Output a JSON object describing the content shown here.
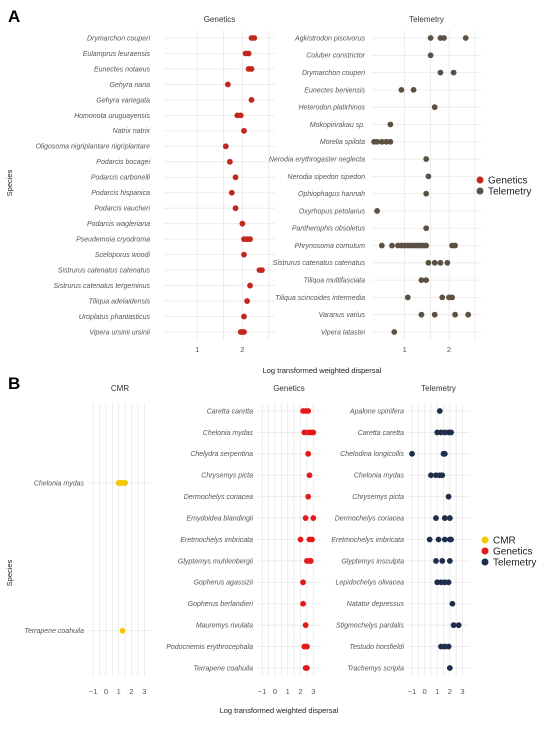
{
  "colors": {
    "CMR": "#f5c800",
    "Genetics": "#c0281e",
    "Telemetry": "#5c5143",
    "GeneticsB": "#e31a1c",
    "TelemetryB": "#1f2e4a"
  },
  "chart_data": [
    {
      "type": "scatter",
      "panel": "A",
      "scale": "log",
      "xlabel": "Log transformed weighted dispersal",
      "ylabel": "Species",
      "legend": {
        "position": "right",
        "entries": [
          "Genetics",
          "Telemetry"
        ]
      },
      "facets": [
        {
          "name": "Genetics",
          "color_key": "Genetics",
          "xlim": [
            0.6,
            3.3
          ],
          "xticks": [
            1,
            2
          ],
          "species": [
            {
              "name": "Drymarchon couperi",
              "values": [
                2.3,
                2.4
              ]
            },
            {
              "name": "Eulamprus leuraensis",
              "values": [
                2.1,
                2.2
              ]
            },
            {
              "name": "Eunectes notaeus",
              "values": [
                2.2,
                2.3
              ]
            },
            {
              "name": "Gehyra nana",
              "values": [
                1.6
              ]
            },
            {
              "name": "Gehyra variegata",
              "values": [
                2.3
              ]
            },
            {
              "name": "Homonota uruguayensis",
              "values": [
                1.85,
                1.95
              ]
            },
            {
              "name": "Natrix natrix",
              "values": [
                2.05
              ]
            },
            {
              "name": "Oligosoma nigriplantare nigriplantare",
              "values": [
                1.55
              ]
            },
            {
              "name": "Podarcis bocagei",
              "values": [
                1.65
              ]
            },
            {
              "name": "Podarcis carbonelli",
              "values": [
                1.8
              ]
            },
            {
              "name": "Podarcis hispanica",
              "values": [
                1.7
              ]
            },
            {
              "name": "Podarcis vaucheri",
              "values": [
                1.8
              ]
            },
            {
              "name": "Podarcis wagleriana",
              "values": [
                2.0
              ]
            },
            {
              "name": "Pseudemoia cryodroma",
              "values": [
                2.05,
                2.15,
                2.25
              ]
            },
            {
              "name": "Sceloporus woodi",
              "values": [
                2.05
              ]
            },
            {
              "name": "Sistrurus catenatus catenatus",
              "values": [
                2.6,
                2.7
              ]
            },
            {
              "name": "Sistrurus catenatus tergeminus",
              "values": [
                2.25
              ]
            },
            {
              "name": "Tiliqua adelaidensis",
              "values": [
                2.15
              ]
            },
            {
              "name": "Uroplatus phantasticus",
              "values": [
                2.05
              ]
            },
            {
              "name": "Vipera ursinii ursinii",
              "values": [
                1.95,
                2.0,
                2.05
              ]
            }
          ]
        },
        {
          "name": "Telemetry",
          "color_key": "Telemetry",
          "xlim": [
            0.6,
            3.3
          ],
          "xticks": [
            1,
            2
          ],
          "species": [
            {
              "name": "Agkistrodon piscivorus",
              "values": [
                1.5,
                1.75,
                1.85,
                2.6
              ]
            },
            {
              "name": "Coluber constrictor",
              "values": [
                1.5
              ]
            },
            {
              "name": "Drymarchon couperi",
              "values": [
                1.75,
                2.15
              ]
            },
            {
              "name": "Eunectes beniensis",
              "values": [
                0.95,
                1.15
              ]
            },
            {
              "name": "Heterodon platirhinos",
              "values": [
                1.6
              ]
            },
            {
              "name": "Mokopirirakau sp.",
              "values": [
                0.8
              ]
            },
            {
              "name": "Morelia spilota",
              "values": [
                0.62,
                0.65,
                0.7,
                0.75,
                0.8
              ]
            },
            {
              "name": "Nerodia erythrogaster neglecta",
              "values": [
                1.4
              ]
            },
            {
              "name": "Nerodia sipedon sipedon",
              "values": [
                1.45
              ]
            },
            {
              "name": "Ophiophagus hannah",
              "values": [
                1.4
              ]
            },
            {
              "name": "Oxyrhopus petolarius",
              "values": [
                0.65
              ]
            },
            {
              "name": "Pantherophis obsoletus",
              "values": [
                1.4
              ]
            },
            {
              "name": "Phrynosoma cornutum",
              "values": [
                0.7,
                0.82,
                0.9,
                0.95,
                1.0,
                1.05,
                1.1,
                1.15,
                1.2,
                1.25,
                1.3,
                1.35,
                1.4,
                2.1,
                2.2
              ]
            },
            {
              "name": "Sistrurus catenatus catenatus",
              "values": [
                1.45,
                1.6,
                1.75,
                1.95
              ]
            },
            {
              "name": "Tiliqua multifasciata",
              "values": [
                1.3,
                1.4
              ]
            },
            {
              "name": "Tiliqua scincoides intermedia",
              "values": [
                1.05,
                1.8,
                2.0,
                2.1
              ]
            },
            {
              "name": "Varanus varius",
              "values": [
                1.3,
                1.6,
                2.2,
                2.7
              ]
            },
            {
              "name": "Vipera latastei",
              "values": [
                0.85
              ]
            }
          ]
        }
      ]
    },
    {
      "type": "scatter",
      "panel": "B",
      "scale": "linear",
      "xlabel": "Log transformed weighted dispersal",
      "ylabel": "Species",
      "legend": {
        "position": "right",
        "entries": [
          "CMR",
          "Genetics",
          "Telemetry"
        ]
      },
      "facets": [
        {
          "name": "CMR",
          "color_key": "CMR",
          "xlim": [
            -1.4,
            3.6
          ],
          "xticks": [
            -1,
            0,
            1,
            2,
            3
          ],
          "species": [
            {
              "name": "Chelonia mydas",
              "values": [
                1.0,
                1.1,
                1.2,
                1.3,
                1.5
              ]
            },
            {
              "name": "Terrapene coahuila",
              "values": [
                1.3
              ]
            }
          ]
        },
        {
          "name": "Genetics",
          "color_key": "GeneticsB",
          "xlim": [
            -1.4,
            3.6
          ],
          "xticks": [
            -1,
            0,
            1,
            2,
            3
          ],
          "species": [
            {
              "name": "Caretta caretta",
              "values": [
                2.2,
                2.4,
                2.6
              ]
            },
            {
              "name": "Chelonia mydas",
              "values": [
                2.3,
                2.6,
                2.8,
                3.0
              ]
            },
            {
              "name": "Chelydra serpentina",
              "values": [
                2.6
              ]
            },
            {
              "name": "Chrysemys picta",
              "values": [
                2.7
              ]
            },
            {
              "name": "Dermochelys coriacea",
              "values": [
                2.6
              ]
            },
            {
              "name": "Emydoidea blandingii",
              "values": [
                2.4,
                3.0
              ]
            },
            {
              "name": "Eretmochelys imbricata",
              "values": [
                2.0,
                2.7,
                2.9
              ]
            },
            {
              "name": "Glyptemys muhlenbergii",
              "values": [
                2.5,
                2.7,
                2.8
              ]
            },
            {
              "name": "Gopherus agassizii",
              "values": [
                2.2
              ]
            },
            {
              "name": "Gopherus berlandieri",
              "values": [
                2.2
              ]
            },
            {
              "name": "Mauremys rivulata",
              "values": [
                2.4
              ]
            },
            {
              "name": "Podocnemis erythrocephala",
              "values": [
                2.3,
                2.5
              ]
            },
            {
              "name": "Terrapene coahuila",
              "values": [
                2.4,
                2.5
              ]
            }
          ]
        },
        {
          "name": "Telemetry",
          "color_key": "TelemetryB",
          "xlim": [
            -1.4,
            3.6
          ],
          "xticks": [
            -1,
            0,
            1,
            2,
            3
          ],
          "species": [
            {
              "name": "Apalone spinifera",
              "values": [
                1.2
              ]
            },
            {
              "name": "Caretta caretta",
              "values": [
                1.0,
                1.3,
                1.6,
                1.9,
                2.1
              ]
            },
            {
              "name": "Chelodina longicollis",
              "values": [
                -1.0,
                1.5,
                1.6
              ]
            },
            {
              "name": "Chelonia mydas",
              "values": [
                0.5,
                0.9,
                1.2,
                1.4
              ]
            },
            {
              "name": "Chrysemys picta",
              "values": [
                1.9
              ]
            },
            {
              "name": "Dermochelys coriacea",
              "values": [
                0.9,
                1.6,
                2.0
              ]
            },
            {
              "name": "Eretmochelys imbricata",
              "values": [
                0.4,
                1.1,
                1.6,
                2.0,
                2.1
              ]
            },
            {
              "name": "Glyptemys insculpta",
              "values": [
                0.9,
                1.4,
                2.0
              ]
            },
            {
              "name": "Lepidochelys olivacea",
              "values": [
                1.0,
                1.3,
                1.6,
                1.9
              ]
            },
            {
              "name": "Natator depressus",
              "values": [
                2.2
              ]
            },
            {
              "name": "Stigmochelys pardalis",
              "values": [
                2.3,
                2.7
              ]
            },
            {
              "name": "Testudo horsfieldi",
              "values": [
                1.3,
                1.6,
                1.9
              ]
            },
            {
              "name": "Trachemys scripta",
              "values": [
                2.0
              ]
            }
          ]
        }
      ]
    }
  ]
}
